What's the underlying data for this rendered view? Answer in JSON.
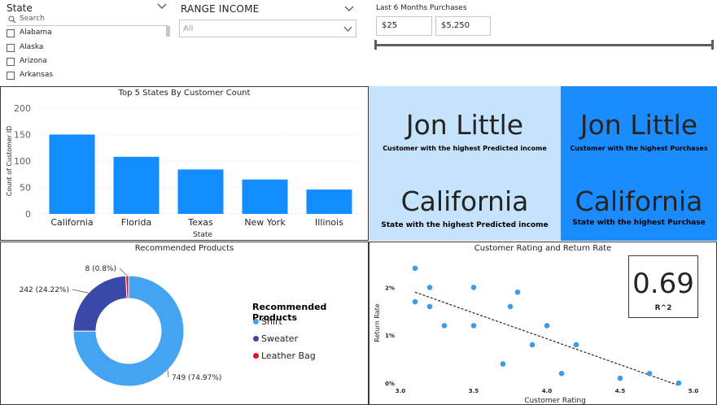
{
  "colors": {
    "accent": "#118DFF",
    "kpi_light_bg": "#C5E3FC",
    "kpi_dark_bg": "#1A8CFF",
    "shirt": "#45A4F2",
    "sweater": "#3A49A8",
    "leather_bag": "#E81123",
    "scatter_point": "#3B9CE8"
  },
  "state_slicer": {
    "title": "State",
    "icon": "chevron-down-icon",
    "search_placeholder": "Search",
    "items": [
      "Alabama",
      "Alaska",
      "Arizona",
      "Arkansas"
    ]
  },
  "range_income_slicer": {
    "title": "RANGE INCOME",
    "selected": "All"
  },
  "purchases_slicer": {
    "title": "Last 6 Months Purchases",
    "min_value": "$25",
    "max_value": "$5,250"
  },
  "bar_chart": {
    "chart_data": {
      "type": "bar",
      "title": "Top 5 States By Customer Count",
      "xlabel": "State",
      "ylabel": "Count of Customer ID",
      "categories": [
        "California",
        "Florida",
        "Texas",
        "New York",
        "Illinois"
      ],
      "values": [
        150,
        108,
        84,
        65,
        46
      ],
      "ylim": [
        0,
        200
      ],
      "yticks": [
        "0",
        "50",
        "100",
        "150",
        "200"
      ],
      "grid": true
    }
  },
  "kpis": {
    "top_income_customer": {
      "value": "Jon Little",
      "label": "Customer with the highest Predicted income"
    },
    "top_purchase_customer": {
      "value": "Jon Little",
      "label": "Customer with the highest Purchases"
    },
    "top_income_state": {
      "value": "California",
      "label": "State with the highest Predicted income"
    },
    "top_purchase_state": {
      "value": "California",
      "label": "State with the highest Purchase"
    }
  },
  "donut_chart": {
    "chart_data": {
      "type": "pie",
      "title": "Recommended Products",
      "legend_title": "Recommended Products",
      "legend_position": "right",
      "categories": [
        "Shirt",
        "Sweater",
        "Leather Bag"
      ],
      "values": [
        749,
        242,
        8
      ],
      "percent_labels": [
        "749 (74.97%)",
        "242 (24.22%)",
        "8 (0.8%)"
      ]
    }
  },
  "scatter_chart": {
    "chart_data": {
      "type": "scatter",
      "title": "Customer Rating and Return Rate",
      "xlabel": "Customer Rating",
      "ylabel": "Return Rate",
      "xlim": [
        3.0,
        5.0
      ],
      "ylim": [
        0,
        2.5
      ],
      "xticks": [
        "3.0",
        "3.5",
        "4.0",
        "4.5",
        "5.0"
      ],
      "yticks": [
        "0%",
        "1%",
        "2%"
      ],
      "points": [
        {
          "x": 3.1,
          "y": 2.4
        },
        {
          "x": 3.1,
          "y": 1.7
        },
        {
          "x": 3.2,
          "y": 2.0
        },
        {
          "x": 3.2,
          "y": 1.6
        },
        {
          "x": 3.3,
          "y": 1.2
        },
        {
          "x": 3.5,
          "y": 2.0
        },
        {
          "x": 3.5,
          "y": 1.2
        },
        {
          "x": 3.7,
          "y": 0.4
        },
        {
          "x": 3.75,
          "y": 1.6
        },
        {
          "x": 3.8,
          "y": 1.9
        },
        {
          "x": 3.9,
          "y": 0.8
        },
        {
          "x": 4.0,
          "y": 1.2
        },
        {
          "x": 4.1,
          "y": 0.2
        },
        {
          "x": 4.2,
          "y": 0.8
        },
        {
          "x": 4.5,
          "y": 0.1
        },
        {
          "x": 4.7,
          "y": 0.2
        },
        {
          "x": 4.9,
          "y": 0.0
        }
      ],
      "trendline": [
        {
          "x": 3.1,
          "y": 1.9
        },
        {
          "x": 4.9,
          "y": -0.05
        }
      ],
      "r_squared": {
        "value": "0.69",
        "label": "R^2"
      }
    }
  }
}
